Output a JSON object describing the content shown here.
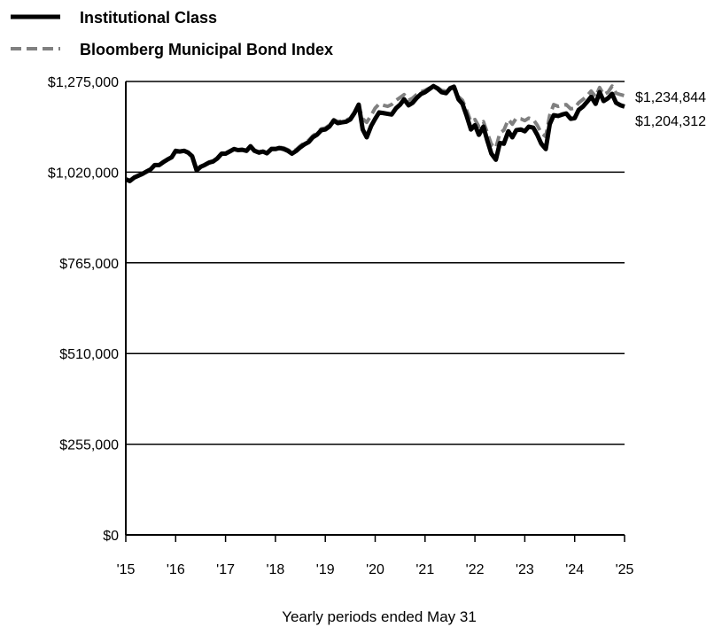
{
  "chart_data": {
    "type": "line",
    "title": "",
    "xlabel": "Yearly periods ended May 31",
    "ylabel": "",
    "ylim": [
      0,
      1275000
    ],
    "y_ticks": [
      0,
      255000,
      510000,
      765000,
      1020000,
      1275000
    ],
    "y_tick_labels": [
      "$0",
      "$255,000",
      "$510,000",
      "$765,000",
      "$1,020,000",
      "$1,275,000"
    ],
    "x_range": [
      2015,
      2025
    ],
    "x_ticks": [
      2015,
      2016,
      2017,
      2018,
      2019,
      2020,
      2021,
      2022,
      2023,
      2024,
      2025
    ],
    "x_tick_labels": [
      "'15",
      "'16",
      "'17",
      "'18",
      "'19",
      "'20",
      "'21",
      "'22",
      "'23",
      "'24",
      "'25"
    ],
    "grid": true,
    "legend_position": "top-left",
    "series": [
      {
        "name": "Institutional Class",
        "color": "#000000",
        "style": "solid",
        "end_label": "$1,204,312",
        "points": [
          [
            2015.0,
            1000000
          ],
          [
            2015.08,
            995000
          ],
          [
            2015.17,
            1005000
          ],
          [
            2015.25,
            1010000
          ],
          [
            2015.33,
            1015000
          ],
          [
            2015.42,
            1022000
          ],
          [
            2015.5,
            1028000
          ],
          [
            2015.58,
            1040000
          ],
          [
            2015.67,
            1040000
          ],
          [
            2015.75,
            1048000
          ],
          [
            2015.83,
            1055000
          ],
          [
            2015.92,
            1062000
          ],
          [
            2016.0,
            1080000
          ],
          [
            2016.08,
            1078000
          ],
          [
            2016.17,
            1080000
          ],
          [
            2016.25,
            1075000
          ],
          [
            2016.33,
            1065000
          ],
          [
            2016.42,
            1025000
          ],
          [
            2016.5,
            1035000
          ],
          [
            2016.58,
            1040000
          ],
          [
            2016.67,
            1047000
          ],
          [
            2016.75,
            1050000
          ],
          [
            2016.83,
            1058000
          ],
          [
            2016.92,
            1072000
          ],
          [
            2017.0,
            1072000
          ],
          [
            2017.08,
            1078000
          ],
          [
            2017.17,
            1085000
          ],
          [
            2017.25,
            1082000
          ],
          [
            2017.33,
            1083000
          ],
          [
            2017.42,
            1080000
          ],
          [
            2017.5,
            1093000
          ],
          [
            2017.58,
            1080000
          ],
          [
            2017.67,
            1075000
          ],
          [
            2017.75,
            1078000
          ],
          [
            2017.83,
            1073000
          ],
          [
            2017.92,
            1085000
          ],
          [
            2018.0,
            1085000
          ],
          [
            2018.08,
            1088000
          ],
          [
            2018.17,
            1085000
          ],
          [
            2018.25,
            1080000
          ],
          [
            2018.33,
            1072000
          ],
          [
            2018.42,
            1080000
          ],
          [
            2018.5,
            1090000
          ],
          [
            2018.58,
            1098000
          ],
          [
            2018.67,
            1105000
          ],
          [
            2018.75,
            1118000
          ],
          [
            2018.83,
            1125000
          ],
          [
            2018.92,
            1138000
          ],
          [
            2019.0,
            1140000
          ],
          [
            2019.08,
            1148000
          ],
          [
            2019.17,
            1165000
          ],
          [
            2019.25,
            1158000
          ],
          [
            2019.33,
            1160000
          ],
          [
            2019.42,
            1162000
          ],
          [
            2019.5,
            1168000
          ],
          [
            2019.58,
            1185000
          ],
          [
            2019.67,
            1210000
          ],
          [
            2019.75,
            1140000
          ],
          [
            2019.83,
            1118000
          ],
          [
            2019.92,
            1150000
          ],
          [
            2020.0,
            1170000
          ],
          [
            2020.08,
            1188000
          ],
          [
            2020.17,
            1186000
          ],
          [
            2020.25,
            1184000
          ],
          [
            2020.33,
            1182000
          ],
          [
            2020.42,
            1200000
          ],
          [
            2020.5,
            1210000
          ],
          [
            2020.58,
            1225000
          ],
          [
            2020.67,
            1208000
          ],
          [
            2020.75,
            1215000
          ],
          [
            2020.83,
            1228000
          ],
          [
            2020.92,
            1240000
          ],
          [
            2021.0,
            1245000
          ],
          [
            2021.08,
            1253000
          ],
          [
            2021.17,
            1262000
          ],
          [
            2021.25,
            1255000
          ],
          [
            2021.33,
            1245000
          ],
          [
            2021.42,
            1242000
          ],
          [
            2021.5,
            1255000
          ],
          [
            2021.58,
            1260000
          ],
          [
            2021.67,
            1225000
          ],
          [
            2021.75,
            1212000
          ],
          [
            2021.83,
            1180000
          ],
          [
            2021.92,
            1140000
          ],
          [
            2022.0,
            1152000
          ],
          [
            2022.08,
            1125000
          ],
          [
            2022.17,
            1148000
          ],
          [
            2022.25,
            1108000
          ],
          [
            2022.33,
            1072000
          ],
          [
            2022.42,
            1055000
          ],
          [
            2022.5,
            1102000
          ],
          [
            2022.58,
            1100000
          ],
          [
            2022.67,
            1135000
          ],
          [
            2022.75,
            1118000
          ],
          [
            2022.83,
            1138000
          ],
          [
            2022.92,
            1140000
          ],
          [
            2023.0,
            1135000
          ],
          [
            2023.08,
            1148000
          ],
          [
            2023.17,
            1145000
          ],
          [
            2023.25,
            1125000
          ],
          [
            2023.33,
            1100000
          ],
          [
            2023.42,
            1085000
          ],
          [
            2023.5,
            1155000
          ],
          [
            2023.58,
            1180000
          ],
          [
            2023.67,
            1178000
          ],
          [
            2023.75,
            1182000
          ],
          [
            2023.83,
            1185000
          ],
          [
            2023.92,
            1170000
          ],
          [
            2024.0,
            1172000
          ],
          [
            2024.08,
            1195000
          ],
          [
            2024.17,
            1205000
          ],
          [
            2024.25,
            1218000
          ],
          [
            2024.33,
            1232000
          ],
          [
            2024.42,
            1212000
          ],
          [
            2024.5,
            1245000
          ],
          [
            2024.58,
            1220000
          ],
          [
            2024.67,
            1228000
          ],
          [
            2024.75,
            1240000
          ],
          [
            2024.83,
            1215000
          ],
          [
            2024.92,
            1208000
          ],
          [
            2025.0,
            1204312
          ]
        ]
      },
      {
        "name": "Bloomberg Municipal Bond Index",
        "color": "#808080",
        "style": "dashed",
        "end_label": "$1,234,844",
        "points": [
          [
            2015.0,
            1000000
          ],
          [
            2015.08,
            996000
          ],
          [
            2015.17,
            1006000
          ],
          [
            2015.25,
            1011000
          ],
          [
            2015.33,
            1016000
          ],
          [
            2015.42,
            1023000
          ],
          [
            2015.5,
            1029000
          ],
          [
            2015.58,
            1041000
          ],
          [
            2015.67,
            1041000
          ],
          [
            2015.75,
            1049000
          ],
          [
            2015.83,
            1056000
          ],
          [
            2015.92,
            1063000
          ],
          [
            2016.0,
            1081000
          ],
          [
            2016.08,
            1079000
          ],
          [
            2016.17,
            1081000
          ],
          [
            2016.25,
            1076000
          ],
          [
            2016.33,
            1066000
          ],
          [
            2016.42,
            1027000
          ],
          [
            2016.5,
            1036000
          ],
          [
            2016.58,
            1041000
          ],
          [
            2016.67,
            1048000
          ],
          [
            2016.75,
            1051000
          ],
          [
            2016.83,
            1059000
          ],
          [
            2016.92,
            1073000
          ],
          [
            2017.0,
            1073000
          ],
          [
            2017.08,
            1079000
          ],
          [
            2017.17,
            1086000
          ],
          [
            2017.25,
            1083000
          ],
          [
            2017.33,
            1084000
          ],
          [
            2017.42,
            1081000
          ],
          [
            2017.5,
            1094000
          ],
          [
            2017.58,
            1082000
          ],
          [
            2017.67,
            1077000
          ],
          [
            2017.75,
            1080000
          ],
          [
            2017.83,
            1075000
          ],
          [
            2017.92,
            1087000
          ],
          [
            2018.0,
            1087000
          ],
          [
            2018.08,
            1090000
          ],
          [
            2018.17,
            1088000
          ],
          [
            2018.25,
            1083000
          ],
          [
            2018.33,
            1076000
          ],
          [
            2018.42,
            1084000
          ],
          [
            2018.5,
            1094000
          ],
          [
            2018.58,
            1102000
          ],
          [
            2018.67,
            1110000
          ],
          [
            2018.75,
            1122000
          ],
          [
            2018.83,
            1130000
          ],
          [
            2018.92,
            1142000
          ],
          [
            2019.0,
            1144000
          ],
          [
            2019.08,
            1152000
          ],
          [
            2019.17,
            1168000
          ],
          [
            2019.25,
            1162000
          ],
          [
            2019.33,
            1164000
          ],
          [
            2019.42,
            1166000
          ],
          [
            2019.5,
            1172000
          ],
          [
            2019.58,
            1188000
          ],
          [
            2019.67,
            1205000
          ],
          [
            2019.75,
            1170000
          ],
          [
            2019.83,
            1160000
          ],
          [
            2019.92,
            1180000
          ],
          [
            2020.0,
            1200000
          ],
          [
            2020.08,
            1212000
          ],
          [
            2020.17,
            1208000
          ],
          [
            2020.25,
            1205000
          ],
          [
            2020.33,
            1210000
          ],
          [
            2020.42,
            1222000
          ],
          [
            2020.5,
            1230000
          ],
          [
            2020.58,
            1238000
          ],
          [
            2020.67,
            1222000
          ],
          [
            2020.75,
            1228000
          ],
          [
            2020.83,
            1238000
          ],
          [
            2020.92,
            1246000
          ],
          [
            2021.0,
            1250000
          ],
          [
            2021.08,
            1256000
          ],
          [
            2021.17,
            1262000
          ],
          [
            2021.25,
            1258000
          ],
          [
            2021.33,
            1250000
          ],
          [
            2021.42,
            1248000
          ],
          [
            2021.5,
            1258000
          ],
          [
            2021.58,
            1262000
          ],
          [
            2021.67,
            1232000
          ],
          [
            2021.75,
            1222000
          ],
          [
            2021.83,
            1195000
          ],
          [
            2021.92,
            1162000
          ],
          [
            2022.0,
            1168000
          ],
          [
            2022.08,
            1148000
          ],
          [
            2022.17,
            1162000
          ],
          [
            2022.25,
            1130000
          ],
          [
            2022.33,
            1098000
          ],
          [
            2022.42,
            1088000
          ],
          [
            2022.5,
            1130000
          ],
          [
            2022.58,
            1138000
          ],
          [
            2022.67,
            1168000
          ],
          [
            2022.75,
            1155000
          ],
          [
            2022.83,
            1172000
          ],
          [
            2022.92,
            1170000
          ],
          [
            2023.0,
            1165000
          ],
          [
            2023.08,
            1172000
          ],
          [
            2023.17,
            1168000
          ],
          [
            2023.25,
            1152000
          ],
          [
            2023.33,
            1130000
          ],
          [
            2023.42,
            1120000
          ],
          [
            2023.5,
            1180000
          ],
          [
            2023.58,
            1210000
          ],
          [
            2023.67,
            1205000
          ],
          [
            2023.75,
            1208000
          ],
          [
            2023.83,
            1210000
          ],
          [
            2023.92,
            1198000
          ],
          [
            2024.0,
            1200000
          ],
          [
            2024.08,
            1215000
          ],
          [
            2024.17,
            1225000
          ],
          [
            2024.25,
            1235000
          ],
          [
            2024.33,
            1248000
          ],
          [
            2024.42,
            1232000
          ],
          [
            2024.5,
            1258000
          ],
          [
            2024.58,
            1238000
          ],
          [
            2024.67,
            1245000
          ],
          [
            2024.75,
            1262000
          ],
          [
            2024.83,
            1242000
          ],
          [
            2024.92,
            1238000
          ],
          [
            2025.0,
            1234844
          ]
        ]
      }
    ]
  }
}
